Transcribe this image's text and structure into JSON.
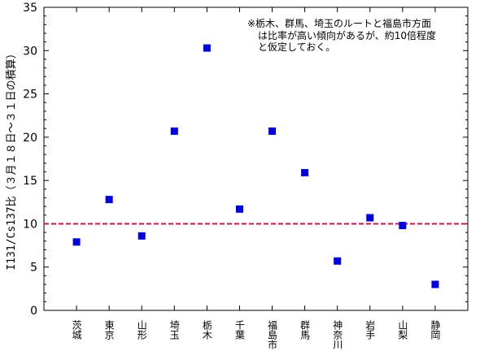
{
  "chart_data": {
    "type": "scatter",
    "title": "",
    "xlabel": "",
    "ylabel": "I131/Cs137比（３月１８日～３１日の積算）",
    "ylim": [
      0,
      35
    ],
    "yticks": [
      "0",
      "5",
      "10",
      "15",
      "20",
      "25",
      "30",
      "35"
    ],
    "categories": [
      "茨城",
      "東京",
      "山形",
      "埼玉",
      "栃木",
      "千葉",
      "福島市",
      "群馬",
      "神奈川",
      "岩手",
      "山梨",
      "静岡"
    ],
    "series": [
      {
        "values": [
          7.9,
          12.8,
          8.6,
          20.7,
          30.3,
          11.7,
          20.7,
          15.9,
          5.7,
          10.7,
          9.8,
          3.0
        ],
        "color": "#0000dd"
      }
    ],
    "reference_line": {
      "value": 10,
      "color": "#cc1f5a",
      "style": "dashed"
    },
    "annotation": [
      "※栃木、群馬、埼玉のルートと福島市方面",
      "は比率が高い傾向があるが、約10倍程度",
      "と仮定しておく。"
    ],
    "grid": false,
    "legend": "none"
  }
}
